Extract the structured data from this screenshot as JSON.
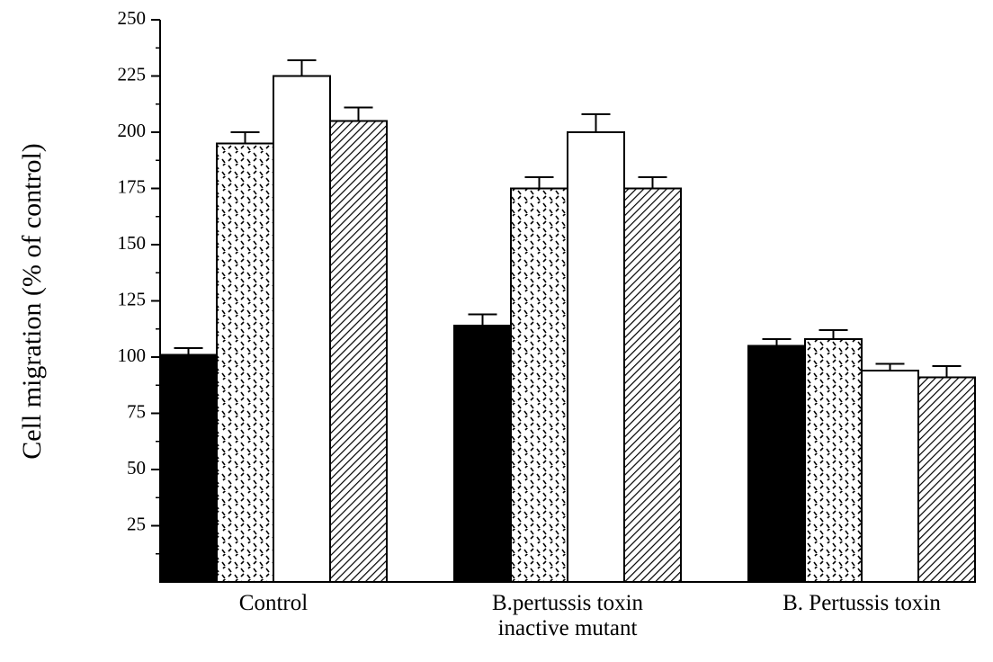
{
  "chart_data": {
    "type": "bar",
    "ylabel": "Cell migration (% of control)",
    "categories": [
      "Control",
      "B.pertussis toxin\ninactive mutant",
      "B. Pertussis toxin"
    ],
    "series": [
      {
        "color": "#000000",
        "hatch": "solid",
        "values": [
          101,
          114,
          105
        ],
        "errors": [
          3,
          5,
          3
        ]
      },
      {
        "color": "#ffffff",
        "hatch": "dashes",
        "values": [
          195,
          175,
          108
        ],
        "errors": [
          5,
          5,
          4
        ]
      },
      {
        "color": "#ffffff",
        "hatch": "solid",
        "values": [
          225,
          200,
          94
        ],
        "errors": [
          7,
          8,
          3
        ]
      },
      {
        "color": "#ffffff",
        "hatch": "diagonal",
        "values": [
          205,
          175,
          91
        ],
        "errors": [
          6,
          5,
          5
        ]
      }
    ],
    "ylim": [
      0,
      250
    ],
    "yticks": [
      25,
      50,
      75,
      100,
      125,
      150,
      175,
      200,
      225,
      250
    ]
  }
}
